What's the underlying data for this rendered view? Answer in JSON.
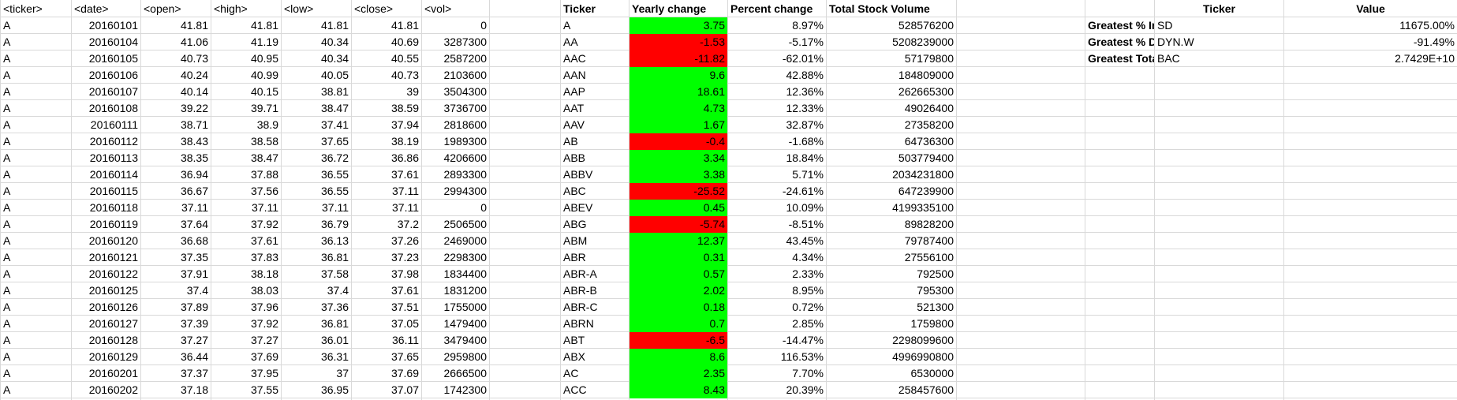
{
  "raw": {
    "headers": [
      "<ticker>",
      "<date>",
      "<open>",
      "<high>",
      "<low>",
      "<close>",
      "<vol>"
    ],
    "rows": [
      [
        "A",
        "20160101",
        "41.81",
        "41.81",
        "41.81",
        "41.81",
        "0"
      ],
      [
        "A",
        "20160104",
        "41.06",
        "41.19",
        "40.34",
        "40.69",
        "3287300"
      ],
      [
        "A",
        "20160105",
        "40.73",
        "40.95",
        "40.34",
        "40.55",
        "2587200"
      ],
      [
        "A",
        "20160106",
        "40.24",
        "40.99",
        "40.05",
        "40.73",
        "2103600"
      ],
      [
        "A",
        "20160107",
        "40.14",
        "40.15",
        "38.81",
        "39",
        "3504300"
      ],
      [
        "A",
        "20160108",
        "39.22",
        "39.71",
        "38.47",
        "38.59",
        "3736700"
      ],
      [
        "A",
        "20160111",
        "38.71",
        "38.9",
        "37.41",
        "37.94",
        "2818600"
      ],
      [
        "A",
        "20160112",
        "38.43",
        "38.58",
        "37.65",
        "38.19",
        "1989300"
      ],
      [
        "A",
        "20160113",
        "38.35",
        "38.47",
        "36.72",
        "36.86",
        "4206600"
      ],
      [
        "A",
        "20160114",
        "36.94",
        "37.88",
        "36.55",
        "37.61",
        "2893300"
      ],
      [
        "A",
        "20160115",
        "36.67",
        "37.56",
        "36.55",
        "37.11",
        "2994300"
      ],
      [
        "A",
        "20160118",
        "37.11",
        "37.11",
        "37.11",
        "37.11",
        "0"
      ],
      [
        "A",
        "20160119",
        "37.64",
        "37.92",
        "36.79",
        "37.2",
        "2506500"
      ],
      [
        "A",
        "20160120",
        "36.68",
        "37.61",
        "36.13",
        "37.26",
        "2469000"
      ],
      [
        "A",
        "20160121",
        "37.35",
        "37.83",
        "36.81",
        "37.23",
        "2298300"
      ],
      [
        "A",
        "20160122",
        "37.91",
        "38.18",
        "37.58",
        "37.98",
        "1834400"
      ],
      [
        "A",
        "20160125",
        "37.4",
        "38.03",
        "37.4",
        "37.61",
        "1831200"
      ],
      [
        "A",
        "20160126",
        "37.89",
        "37.96",
        "37.36",
        "37.51",
        "1755000"
      ],
      [
        "A",
        "20160127",
        "37.39",
        "37.92",
        "36.81",
        "37.05",
        "1479400"
      ],
      [
        "A",
        "20160128",
        "37.27",
        "37.27",
        "36.01",
        "36.11",
        "3479400"
      ],
      [
        "A",
        "20160129",
        "36.44",
        "37.69",
        "36.31",
        "37.65",
        "2959800"
      ],
      [
        "A",
        "20160201",
        "37.37",
        "37.95",
        "37",
        "37.69",
        "2666500"
      ],
      [
        "A",
        "20160202",
        "37.18",
        "37.55",
        "36.95",
        "37.07",
        "1742300"
      ]
    ]
  },
  "summary": {
    "headers": [
      "Ticker",
      "Yearly change",
      "Percent change",
      "Total Stock Volume"
    ],
    "rows": [
      [
        "A",
        "3.75",
        "8.97%",
        "528576200"
      ],
      [
        "AA",
        "-1.53",
        "-5.17%",
        "5208239000"
      ],
      [
        "AAC",
        "-11.82",
        "-62.01%",
        "57179800"
      ],
      [
        "AAN",
        "9.6",
        "42.88%",
        "184809000"
      ],
      [
        "AAP",
        "18.61",
        "12.36%",
        "262665300"
      ],
      [
        "AAT",
        "4.73",
        "12.33%",
        "49026400"
      ],
      [
        "AAV",
        "1.67",
        "32.87%",
        "27358200"
      ],
      [
        "AB",
        "-0.4",
        "-1.68%",
        "64736300"
      ],
      [
        "ABB",
        "3.34",
        "18.84%",
        "503779400"
      ],
      [
        "ABBV",
        "3.38",
        "5.71%",
        "2034231800"
      ],
      [
        "ABC",
        "-25.52",
        "-24.61%",
        "647239900"
      ],
      [
        "ABEV",
        "0.45",
        "10.09%",
        "4199335100"
      ],
      [
        "ABG",
        "-5.74",
        "-8.51%",
        "89828200"
      ],
      [
        "ABM",
        "12.37",
        "43.45%",
        "79787400"
      ],
      [
        "ABR",
        "0.31",
        "4.34%",
        "27556100"
      ],
      [
        "ABR-A",
        "0.57",
        "2.33%",
        "792500"
      ],
      [
        "ABR-B",
        "2.02",
        "8.95%",
        "795300"
      ],
      [
        "ABR-C",
        "0.18",
        "0.72%",
        "521300"
      ],
      [
        "ABRN",
        "0.7",
        "2.85%",
        "1759800"
      ],
      [
        "ABT",
        "-6.5",
        "-14.47%",
        "2298099600"
      ],
      [
        "ABX",
        "8.6",
        "116.53%",
        "4996990800"
      ],
      [
        "AC",
        "2.35",
        "7.70%",
        "6530000"
      ],
      [
        "ACC",
        "8.43",
        "20.39%",
        "258457600"
      ]
    ]
  },
  "greatest": {
    "headers": [
      "Ticker",
      "Value"
    ],
    "rows": [
      [
        "Greatest % Increase",
        "SD",
        "11675.00%"
      ],
      [
        "Greatest % Decrease",
        "DYN.W",
        "-91.49%"
      ],
      [
        "Greatest Total Volume",
        "BAC",
        "2.7429E+10"
      ]
    ]
  },
  "colors": {
    "positive": "#00ff00",
    "negative": "#ff0000",
    "gridline": "#d9d9d9"
  }
}
